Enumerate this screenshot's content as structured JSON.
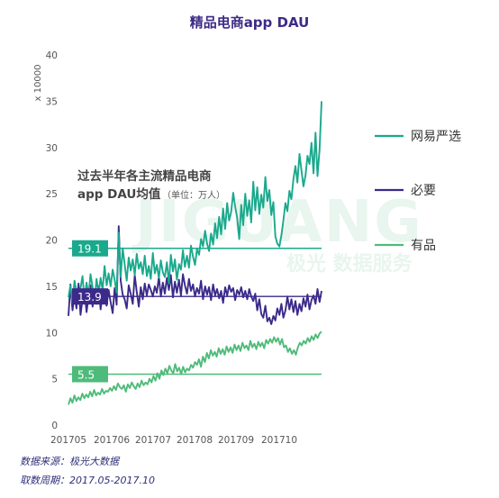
{
  "chart_data": {
    "type": "line",
    "title": "精品电商app DAU",
    "ylabel": "x 10000",
    "ylim": [
      0,
      40
    ],
    "yticks": [
      0,
      5,
      10,
      15,
      20,
      25,
      30,
      35,
      40
    ],
    "xticks": [
      "201705",
      "201706",
      "201707",
      "201708",
      "201709",
      "201710"
    ],
    "grid": false,
    "legend_position": "right",
    "annotation": {
      "line1": "过去半年各主流精品电商",
      "line2": "app DAU均值",
      "unit": "（单位：万人）"
    },
    "colors": {
      "网易严选": "#1aa98c",
      "必要": "#3b2a8a",
      "有品": "#4fbb7a"
    },
    "series": [
      {
        "name": "网易严选",
        "average": 19.1,
        "values": [
          13.8,
          15.1,
          13.2,
          15.6,
          14.4,
          13.1,
          14.8,
          16.1,
          13.6,
          15.4,
          14.0,
          16.3,
          14.9,
          13.5,
          15.8,
          14.2,
          15.9,
          14.6,
          17.2,
          15.1,
          16.4,
          15.0,
          16.8,
          15.7,
          14.3,
          20.8,
          16.0,
          19.1,
          17.4,
          15.6,
          18.1,
          16.7,
          17.9,
          16.2,
          18.5,
          16.9,
          17.6,
          16.3,
          18.3,
          16.1,
          17.2,
          15.8,
          18.6,
          16.4,
          17.3,
          15.9,
          17.8,
          16.5,
          16.0,
          17.6,
          15.3,
          18.4,
          16.6,
          17.9,
          15.7,
          17.4,
          16.8,
          18.9,
          17.1,
          18.3,
          17.0,
          19.4,
          18.2,
          17.3,
          19.0,
          18.4,
          20.1,
          19.3,
          21.0,
          19.6,
          18.8,
          20.7,
          19.5,
          21.8,
          20.2,
          22.5,
          20.6,
          23.4,
          21.2,
          24.0,
          22.1,
          23.0,
          25.1,
          23.6,
          22.4,
          20.1,
          23.8,
          21.6,
          25.0,
          22.6,
          24.3,
          21.9,
          26.3,
          23.2,
          25.7,
          22.8,
          24.9,
          23.5,
          26.8,
          24.2,
          25.4,
          22.7,
          24.1,
          20.4,
          19.6,
          19.3,
          20.5,
          22.1,
          24.0,
          23.1,
          25.3,
          24.4,
          26.6,
          28.0,
          26.2,
          29.3,
          27.5,
          25.8,
          27.0,
          29.1,
          28.2,
          30.5,
          27.2,
          31.6,
          26.9,
          29.8,
          35.0
        ]
      },
      {
        "name": "必要",
        "average": 13.9,
        "values": [
          11.8,
          15.2,
          12.4,
          14.1,
          12.6,
          15.3,
          11.9,
          13.6,
          14.5,
          12.2,
          13.9,
          15.1,
          12.8,
          14.4,
          13.1,
          15.0,
          12.5,
          14.3,
          13.7,
          12.9,
          14.6,
          13.3,
          12.1,
          14.8,
          13.0,
          21.5,
          15.6,
          14.1,
          13.6,
          12.6,
          15.1,
          14.2,
          13.1,
          16.2,
          14.4,
          12.8,
          14.9,
          13.6,
          15.3,
          14.0,
          15.2,
          14.6,
          13.9,
          15.0,
          14.3,
          16.0,
          13.9,
          15.4,
          14.2,
          15.9,
          14.6,
          16.2,
          13.8,
          15.5,
          14.3,
          15.7,
          14.0,
          16.3,
          15.1,
          14.2,
          15.8,
          14.5,
          15.2,
          13.9,
          14.8,
          14.2,
          15.6,
          13.6,
          15.0,
          14.1,
          14.9,
          13.5,
          15.2,
          14.0,
          14.7,
          13.7,
          14.5,
          13.2,
          14.9,
          14.0,
          15.1,
          14.4,
          14.8,
          13.5,
          14.6,
          14.1,
          14.9,
          13.8,
          14.5,
          13.6,
          14.7,
          13.9,
          13.4,
          14.2,
          12.4,
          13.6,
          12.0,
          11.6,
          12.9,
          11.2,
          11.6,
          10.9,
          11.8,
          11.3,
          12.6,
          11.9,
          13.1,
          11.6,
          12.4,
          13.9,
          12.5,
          13.6,
          12.2,
          13.4,
          11.9,
          13.1,
          12.3,
          13.7,
          12.8,
          14.1,
          12.5,
          13.5,
          14.0,
          13.1,
          14.7,
          13.3,
          14.5
        ]
      },
      {
        "name": "有品",
        "average": 5.5,
        "values": [
          2.2,
          2.9,
          2.4,
          3.2,
          2.6,
          3.0,
          2.7,
          3.4,
          2.9,
          3.3,
          3.0,
          3.6,
          3.1,
          3.8,
          3.2,
          3.5,
          3.3,
          3.9,
          3.4,
          3.7,
          3.6,
          4.0,
          3.7,
          4.2,
          3.8,
          4.5,
          4.1,
          3.9,
          4.3,
          3.6,
          4.4,
          4.0,
          4.6,
          4.2,
          3.9,
          4.5,
          4.1,
          4.8,
          4.3,
          4.6,
          4.4,
          5.0,
          4.6,
          5.3,
          4.8,
          5.6,
          5.0,
          5.9,
          5.4,
          6.1,
          5.6,
          6.4,
          5.9,
          5.6,
          6.6,
          5.8,
          6.2,
          5.5,
          6.3,
          5.7,
          6.1,
          5.9,
          6.5,
          6.2,
          6.8,
          6.5,
          7.1,
          6.3,
          7.4,
          6.8,
          7.8,
          7.2,
          8.1,
          7.5,
          7.9,
          7.4,
          8.3,
          7.7,
          8.2,
          7.6,
          8.5,
          7.9,
          8.4,
          7.8,
          8.7,
          8.1,
          8.6,
          8.0,
          8.9,
          8.3,
          8.6,
          8.1,
          9.1,
          8.4,
          8.8,
          8.2,
          9.0,
          8.5,
          8.9,
          8.3,
          9.2,
          8.8,
          9.3,
          8.9,
          9.5,
          9.0,
          9.4,
          8.7,
          9.3,
          8.4,
          8.6,
          7.9,
          8.3,
          7.7,
          8.1,
          7.6,
          8.4,
          8.9,
          8.6,
          9.1,
          8.8,
          9.4,
          9.0,
          9.6,
          9.2,
          9.8,
          9.4,
          9.9,
          10.1
        ]
      }
    ]
  },
  "watermark": {
    "big": "JIGUANG",
    "small": "极光 数据服务"
  },
  "source": {
    "line1": "数据来源：极光大数据",
    "line2": "取数周期：2017.05-2017.10"
  }
}
